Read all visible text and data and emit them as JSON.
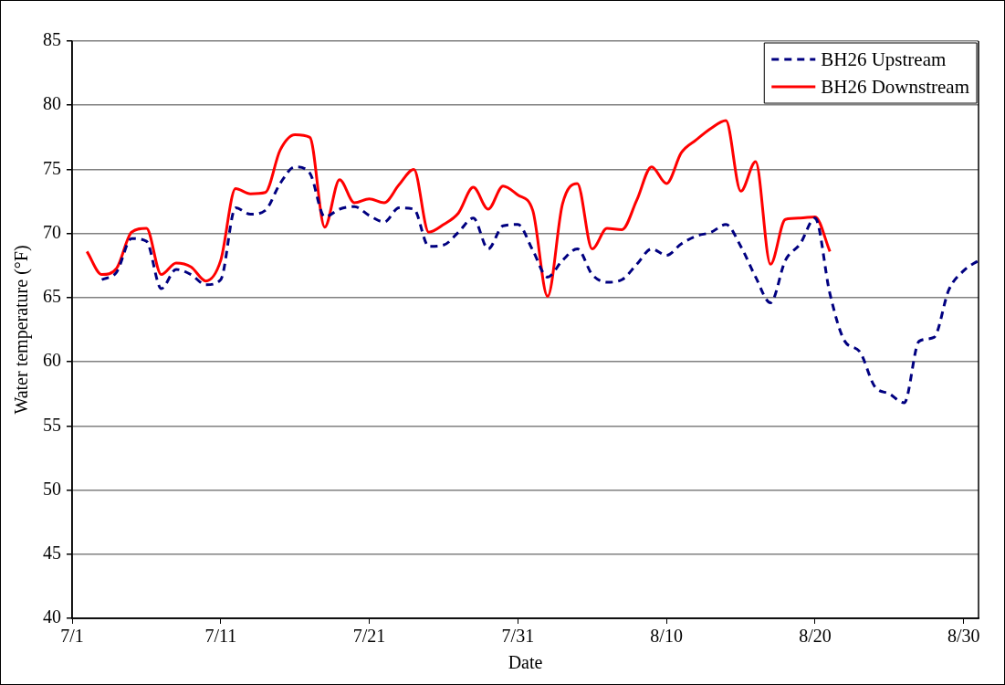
{
  "chart_data": {
    "type": "line",
    "xlabel": "Date",
    "ylabel": "Water temperature (°F)",
    "xlim": [
      "--07-01",
      "--08-31"
    ],
    "xticks": [
      {
        "value": "--07-01",
        "label": "7/1"
      },
      {
        "value": "--07-11",
        "label": "7/11"
      },
      {
        "value": "--07-21",
        "label": "7/21"
      },
      {
        "value": "--07-31",
        "label": "7/31"
      },
      {
        "value": "--08-10",
        "label": "8/10"
      },
      {
        "value": "--08-20",
        "label": "8/20"
      },
      {
        "value": "--08-30",
        "label": "8/30"
      }
    ],
    "ylim": [
      40,
      85
    ],
    "yticks": [
      40,
      45,
      50,
      55,
      60,
      65,
      70,
      75,
      80,
      85
    ],
    "grid": "y",
    "legend": "top right",
    "marker": "none",
    "series": [
      {
        "name": "BH26 Upstream",
        "color": "#000080",
        "line_style": "dashed",
        "x": [
          "--07-03",
          "--07-04",
          "--07-05",
          "--07-06",
          "--07-07",
          "--07-08",
          "--07-09",
          "--07-10",
          "--07-11",
          "--07-12",
          "--07-13",
          "--07-14",
          "--07-15",
          "--07-16",
          "--07-17",
          "--07-18",
          "--07-19",
          "--07-20",
          "--07-21",
          "--07-22",
          "--07-23",
          "--07-24",
          "--07-25",
          "--07-26",
          "--07-27",
          "--07-28",
          "--07-29",
          "--07-30",
          "--07-31",
          "--08-01",
          "--08-02",
          "--08-03",
          "--08-04",
          "--08-05",
          "--08-06",
          "--08-07",
          "--08-08",
          "--08-09",
          "--08-10",
          "--08-11",
          "--08-12",
          "--08-13",
          "--08-14",
          "--08-15",
          "--08-16",
          "--08-17",
          "--08-18",
          "--08-19",
          "--08-20",
          "--08-21",
          "--08-22",
          "--08-23",
          "--08-24",
          "--08-25",
          "--08-26",
          "--08-27",
          "--08-28",
          "--08-29",
          "--08-30",
          "--08-31"
        ],
        "values": [
          66.4,
          67.0,
          69.6,
          69.4,
          65.7,
          67.2,
          66.8,
          66.0,
          66.4,
          72.0,
          71.5,
          71.8,
          73.9,
          75.2,
          74.7,
          71.3,
          71.9,
          72.1,
          71.4,
          70.9,
          72.0,
          71.9,
          69.0,
          69.1,
          70.1,
          71.2,
          68.8,
          70.6,
          70.7,
          68.7,
          66.6,
          67.9,
          68.8,
          66.8,
          66.2,
          66.4,
          67.6,
          68.8,
          68.3,
          69.2,
          69.8,
          70.1,
          70.7,
          69.0,
          66.6,
          64.6,
          67.9,
          69.2,
          71.2,
          65.3,
          61.6,
          60.8,
          58.1,
          57.5,
          56.8,
          61.6,
          61.9,
          65.6,
          67.1,
          67.9
        ]
      },
      {
        "name": "BH26 Downstream",
        "color": "#ff0000",
        "line_style": "solid",
        "x": [
          "--07-02",
          "--07-03",
          "--07-04",
          "--07-05",
          "--07-06",
          "--07-07",
          "--07-08",
          "--07-09",
          "--07-10",
          "--07-11",
          "--07-12",
          "--07-13",
          "--07-14",
          "--07-15",
          "--07-16",
          "--07-17",
          "--07-18",
          "--07-19",
          "--07-20",
          "--07-21",
          "--07-22",
          "--07-23",
          "--07-24",
          "--07-25",
          "--07-26",
          "--07-27",
          "--07-28",
          "--07-29",
          "--07-30",
          "--07-31",
          "--08-01",
          "--08-02",
          "--08-03",
          "--08-04",
          "--08-05",
          "--08-06",
          "--08-07",
          "--08-08",
          "--08-09",
          "--08-10",
          "--08-11",
          "--08-12",
          "--08-13",
          "--08-14",
          "--08-15",
          "--08-16",
          "--08-17",
          "--08-18",
          "--08-19",
          "--08-20",
          "--08-21"
        ],
        "values": [
          68.6,
          66.8,
          67.3,
          70.1,
          70.4,
          66.8,
          67.7,
          67.4,
          66.3,
          67.9,
          73.5,
          73.1,
          73.2,
          76.5,
          77.7,
          77.5,
          70.5,
          74.2,
          72.4,
          72.7,
          72.4,
          73.8,
          75.0,
          70.1,
          70.7,
          71.6,
          73.6,
          71.9,
          73.7,
          73.0,
          71.8,
          65.1,
          72.3,
          73.9,
          68.8,
          70.4,
          70.3,
          72.6,
          75.2,
          73.9,
          76.3,
          77.3,
          78.2,
          78.8,
          73.3,
          75.6,
          67.6,
          71.1,
          71.2,
          71.3,
          68.6
        ]
      }
    ]
  }
}
